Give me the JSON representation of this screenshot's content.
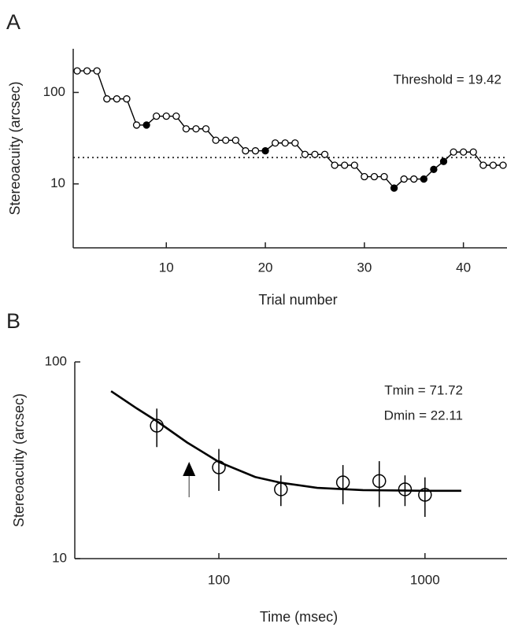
{
  "chart_data": [
    {
      "type": "line",
      "panel": "A",
      "ylabel": "Stereoacuity (arcsec)",
      "xlabel": "Trial number",
      "x": [
        1,
        2,
        3,
        4,
        5,
        6,
        7,
        8,
        9,
        10,
        11,
        12,
        13,
        14,
        15,
        16,
        17,
        18,
        19,
        20,
        21,
        22,
        23,
        24,
        25,
        26,
        27,
        28,
        29,
        30,
        31,
        32,
        33,
        34,
        35,
        36,
        37,
        38,
        39,
        40,
        41,
        42,
        43,
        44
      ],
      "series": [
        {
          "color": "#000000",
          "values": [
            172,
            172,
            172,
            85,
            85,
            85,
            44,
            44,
            55,
            55,
            55,
            40,
            40,
            40,
            30,
            30,
            30,
            23,
            23,
            23,
            28,
            28,
            28,
            21,
            21,
            21,
            16,
            16,
            16,
            12,
            12,
            12,
            9,
            11.3,
            11.3,
            11.3,
            14.4,
            17.6,
            22.3,
            22.3,
            22.3,
            16,
            16,
            16
          ],
          "filled": [
            false,
            false,
            false,
            false,
            false,
            false,
            false,
            true,
            false,
            false,
            false,
            false,
            false,
            false,
            false,
            false,
            false,
            false,
            false,
            true,
            false,
            false,
            false,
            false,
            false,
            false,
            false,
            false,
            false,
            false,
            false,
            false,
            true,
            false,
            false,
            true,
            true,
            true,
            false,
            false,
            false,
            false,
            false,
            false
          ]
        }
      ],
      "xlim": [
        0.6,
        44.4
      ],
      "xticks": [
        10,
        20,
        30,
        40
      ],
      "ylim": [
        2,
        300
      ],
      "yticks": [
        10,
        100
      ],
      "ylog": true,
      "threshold": 19.42,
      "annotation": "Threshold = 19.42"
    },
    {
      "type": "scatter",
      "panel": "B",
      "ylabel": "Stereoacuity (arcsec)",
      "xlabel": "Time (msec)",
      "x": [
        50,
        100,
        200,
        400,
        600,
        800,
        1000
      ],
      "values": [
        47.4,
        29.1,
        22.5,
        24.4,
        24.8,
        22.5,
        21.1
      ],
      "errors": [
        10.5,
        7,
        4,
        5.5,
        6.5,
        4,
        4.8
      ],
      "color": "#000000",
      "fit": {
        "x": [
          30,
          40,
          50,
          70,
          100,
          150,
          200,
          300,
          500,
          1000,
          1500
        ],
        "y": [
          71,
          58,
          50,
          39,
          31,
          26,
          24.3,
          22.9,
          22.3,
          22.12,
          22.11
        ]
      },
      "tmin": 71.72,
      "annotations": [
        "Tmin = 71.72",
        "Dmin = 22.11"
      ],
      "xlim": [
        20,
        2500
      ],
      "xticks": [
        100,
        1000
      ],
      "xlog": true,
      "ylim": [
        10,
        100
      ],
      "yticks": [
        10,
        100
      ],
      "ylog": true
    }
  ]
}
